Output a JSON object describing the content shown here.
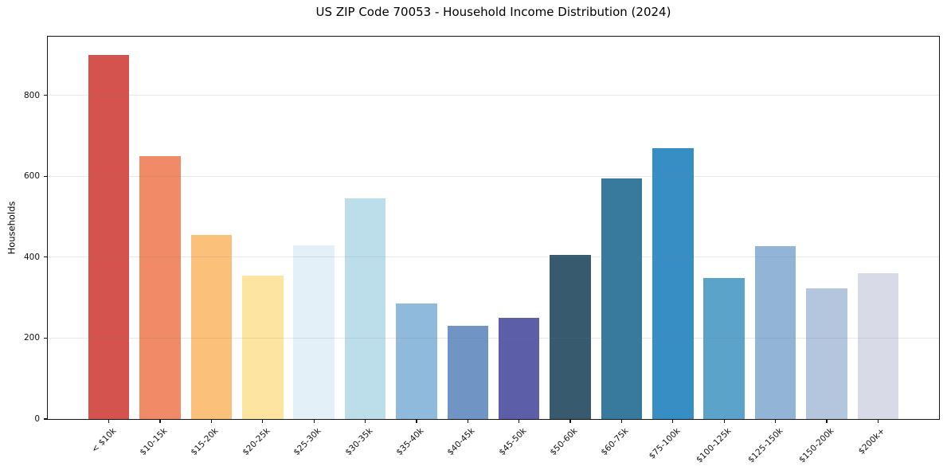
{
  "title": "US ZIP Code 70053 - Household Income Distribution (2024)",
  "chart_data": {
    "type": "bar",
    "title": "US ZIP Code 70053 - Household Income Distribution (2024)",
    "xlabel": "",
    "ylabel": "Households",
    "categories": [
      "< $10k",
      "$10-15k",
      "$15-20k",
      "$20-25k",
      "$25-30k",
      "$30-35k",
      "$35-40k",
      "$40-45k",
      "$45-50k",
      "$50-60k",
      "$60-75k",
      "$75-100k",
      "$100-125k",
      "$125-150k",
      "$150-200k",
      "$200k+"
    ],
    "values": [
      900,
      650,
      455,
      355,
      430,
      545,
      285,
      230,
      250,
      405,
      595,
      670,
      348,
      427,
      322,
      360
    ],
    "bar_colors": [
      "#d5534f",
      "#f18b67",
      "#fbc17b",
      "#fde4a1",
      "#e3f0f7",
      "#bcdeeb",
      "#8fbadb",
      "#7095c5",
      "#5c5fa8",
      "#375a6f",
      "#38799e",
      "#368ec4",
      "#5ba3c9",
      "#92b5d7",
      "#b4c5de",
      "#d8dae8"
    ],
    "ylim": [
      0,
      945
    ],
    "yticks": [
      0,
      200,
      400,
      600,
      800
    ],
    "grid": "horizontal-above-bars",
    "legend": "none",
    "background_color": "#ffffff",
    "frame_color": "#141414",
    "x_tick_rotation_deg": 45
  }
}
